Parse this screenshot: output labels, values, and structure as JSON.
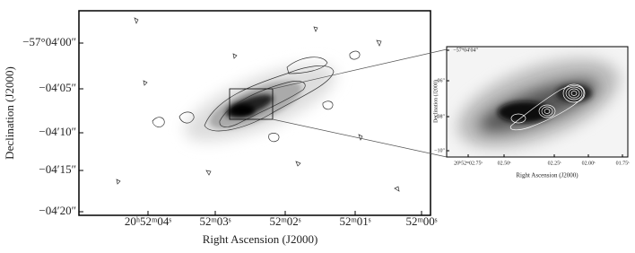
{
  "figure": {
    "main": {
      "x_label": "Right Ascension (J2000)",
      "y_label": "Declination (J2000)",
      "x_tick_labels": [
        "20ʰ52ᵐ04ˢ",
        "52ᵐ03ˢ",
        "52ᵐ02ˢ",
        "52ᵐ01ˢ",
        "52ᵐ00ˢ"
      ],
      "y_tick_labels": [
        "−57°04′00″",
        "−04′05″",
        "−04′10″",
        "−04′15″",
        "−04′20″"
      ]
    },
    "inset": {
      "x_label": "Right Ascension (J2000)",
      "y_label": "Declination (J2000)",
      "x_tick_labels": [
        "20ʰ52ᵐ02.75ˢ",
        "02.50ˢ",
        "02.25ˢ",
        "02.00ˢ",
        "01.75ˢ"
      ],
      "y_tick_labels": [
        "−57°04′04″",
        "−06″",
        "−08″",
        "−10″"
      ]
    }
  }
}
